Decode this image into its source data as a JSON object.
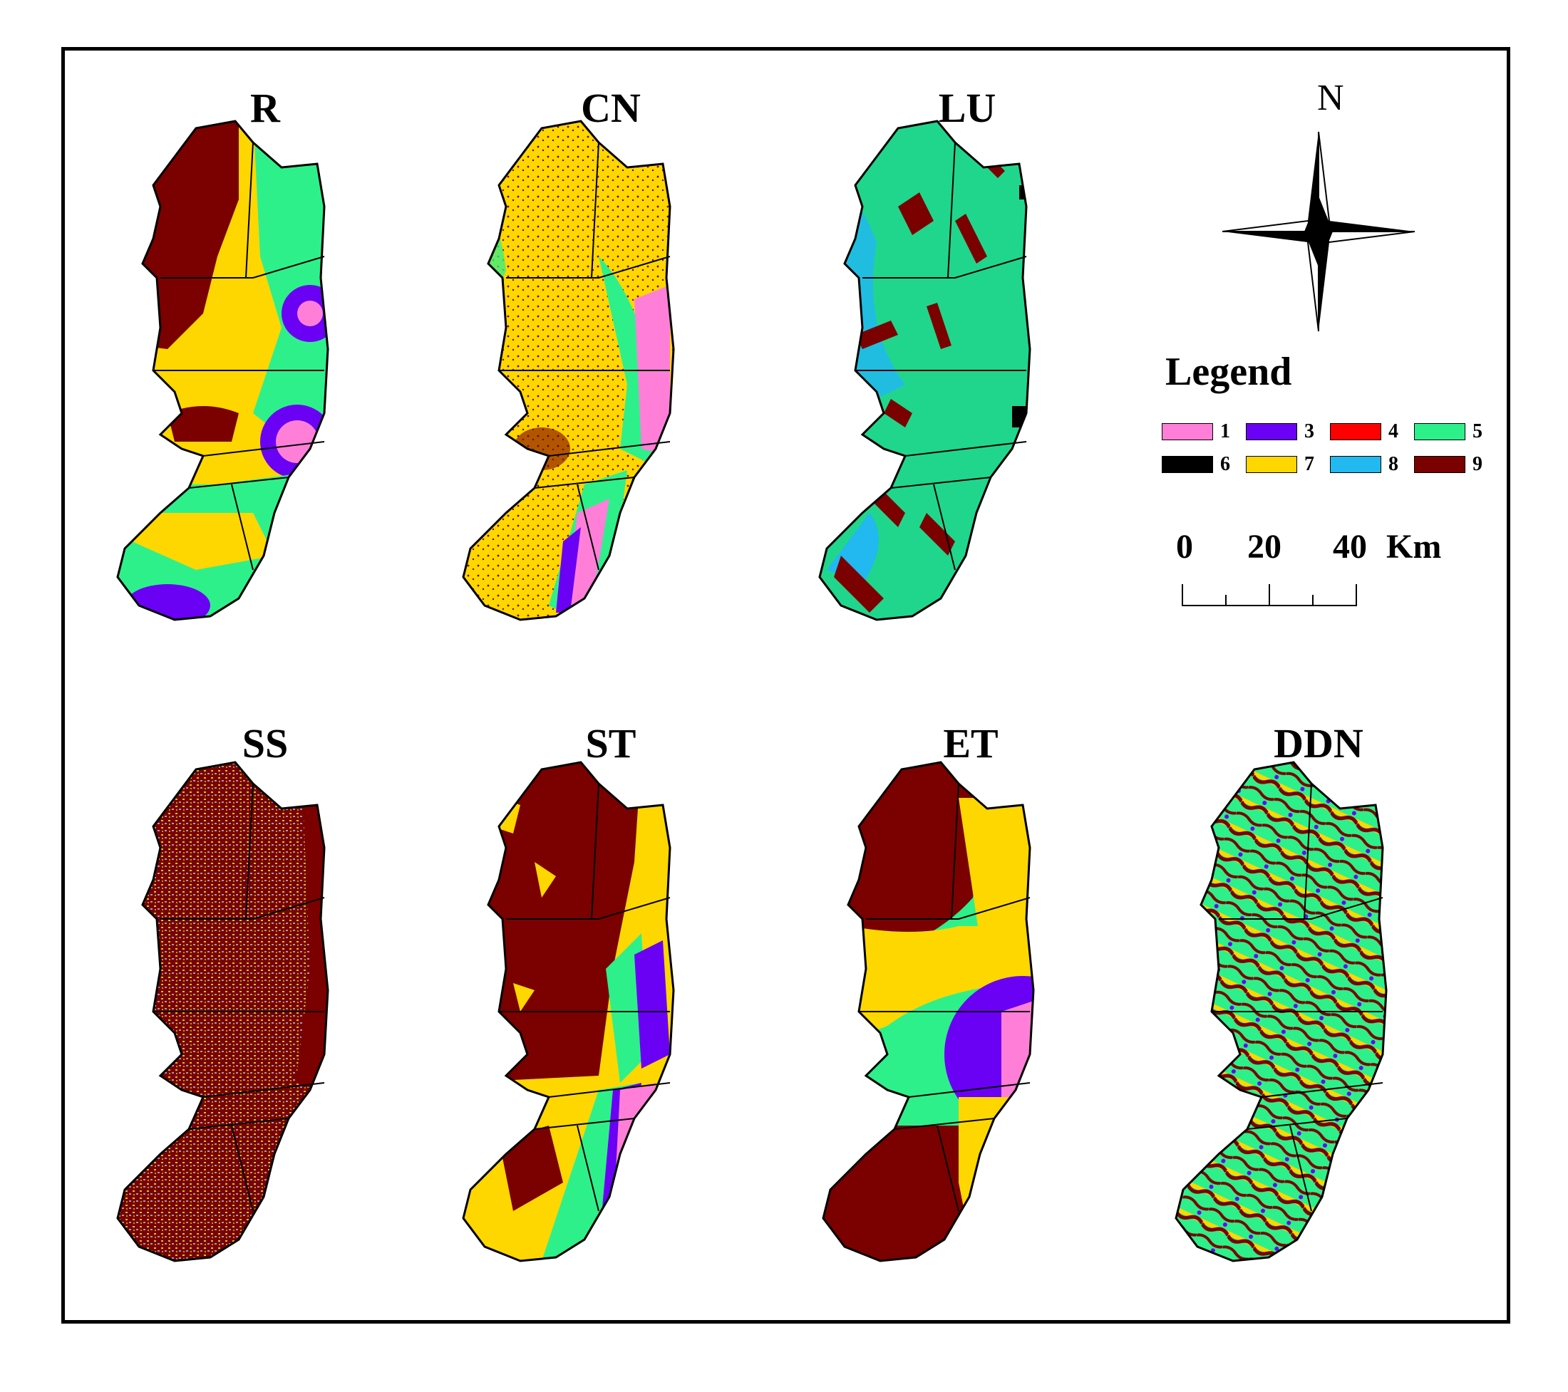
{
  "panels": [
    {
      "id": "R",
      "title": "R"
    },
    {
      "id": "CN",
      "title": "CN"
    },
    {
      "id": "LU",
      "title": "LU"
    },
    {
      "id": "SS",
      "title": "SS"
    },
    {
      "id": "ST",
      "title": "ST"
    },
    {
      "id": "ET",
      "title": "ET"
    },
    {
      "id": "DDN",
      "title": "DDN"
    }
  ],
  "legend": {
    "title": "Legend",
    "items": [
      {
        "label": "1",
        "color": "#ff7fd8"
      },
      {
        "label": "3",
        "color": "#6a00f4"
      },
      {
        "label": "4",
        "color": "#ff0000"
      },
      {
        "label": "5",
        "color": "#2ef08a"
      },
      {
        "label": "6",
        "color": "#000000"
      },
      {
        "label": "7",
        "color": "#ffd700"
      },
      {
        "label": "8",
        "color": "#22b8f0"
      },
      {
        "label": "9",
        "color": "#7b0000"
      }
    ]
  },
  "north_arrow": {
    "label": "N",
    "icon": "compass-rose-icon"
  },
  "scale_bar": {
    "labels": [
      "0",
      "20",
      "40"
    ],
    "unit": "Km"
  }
}
